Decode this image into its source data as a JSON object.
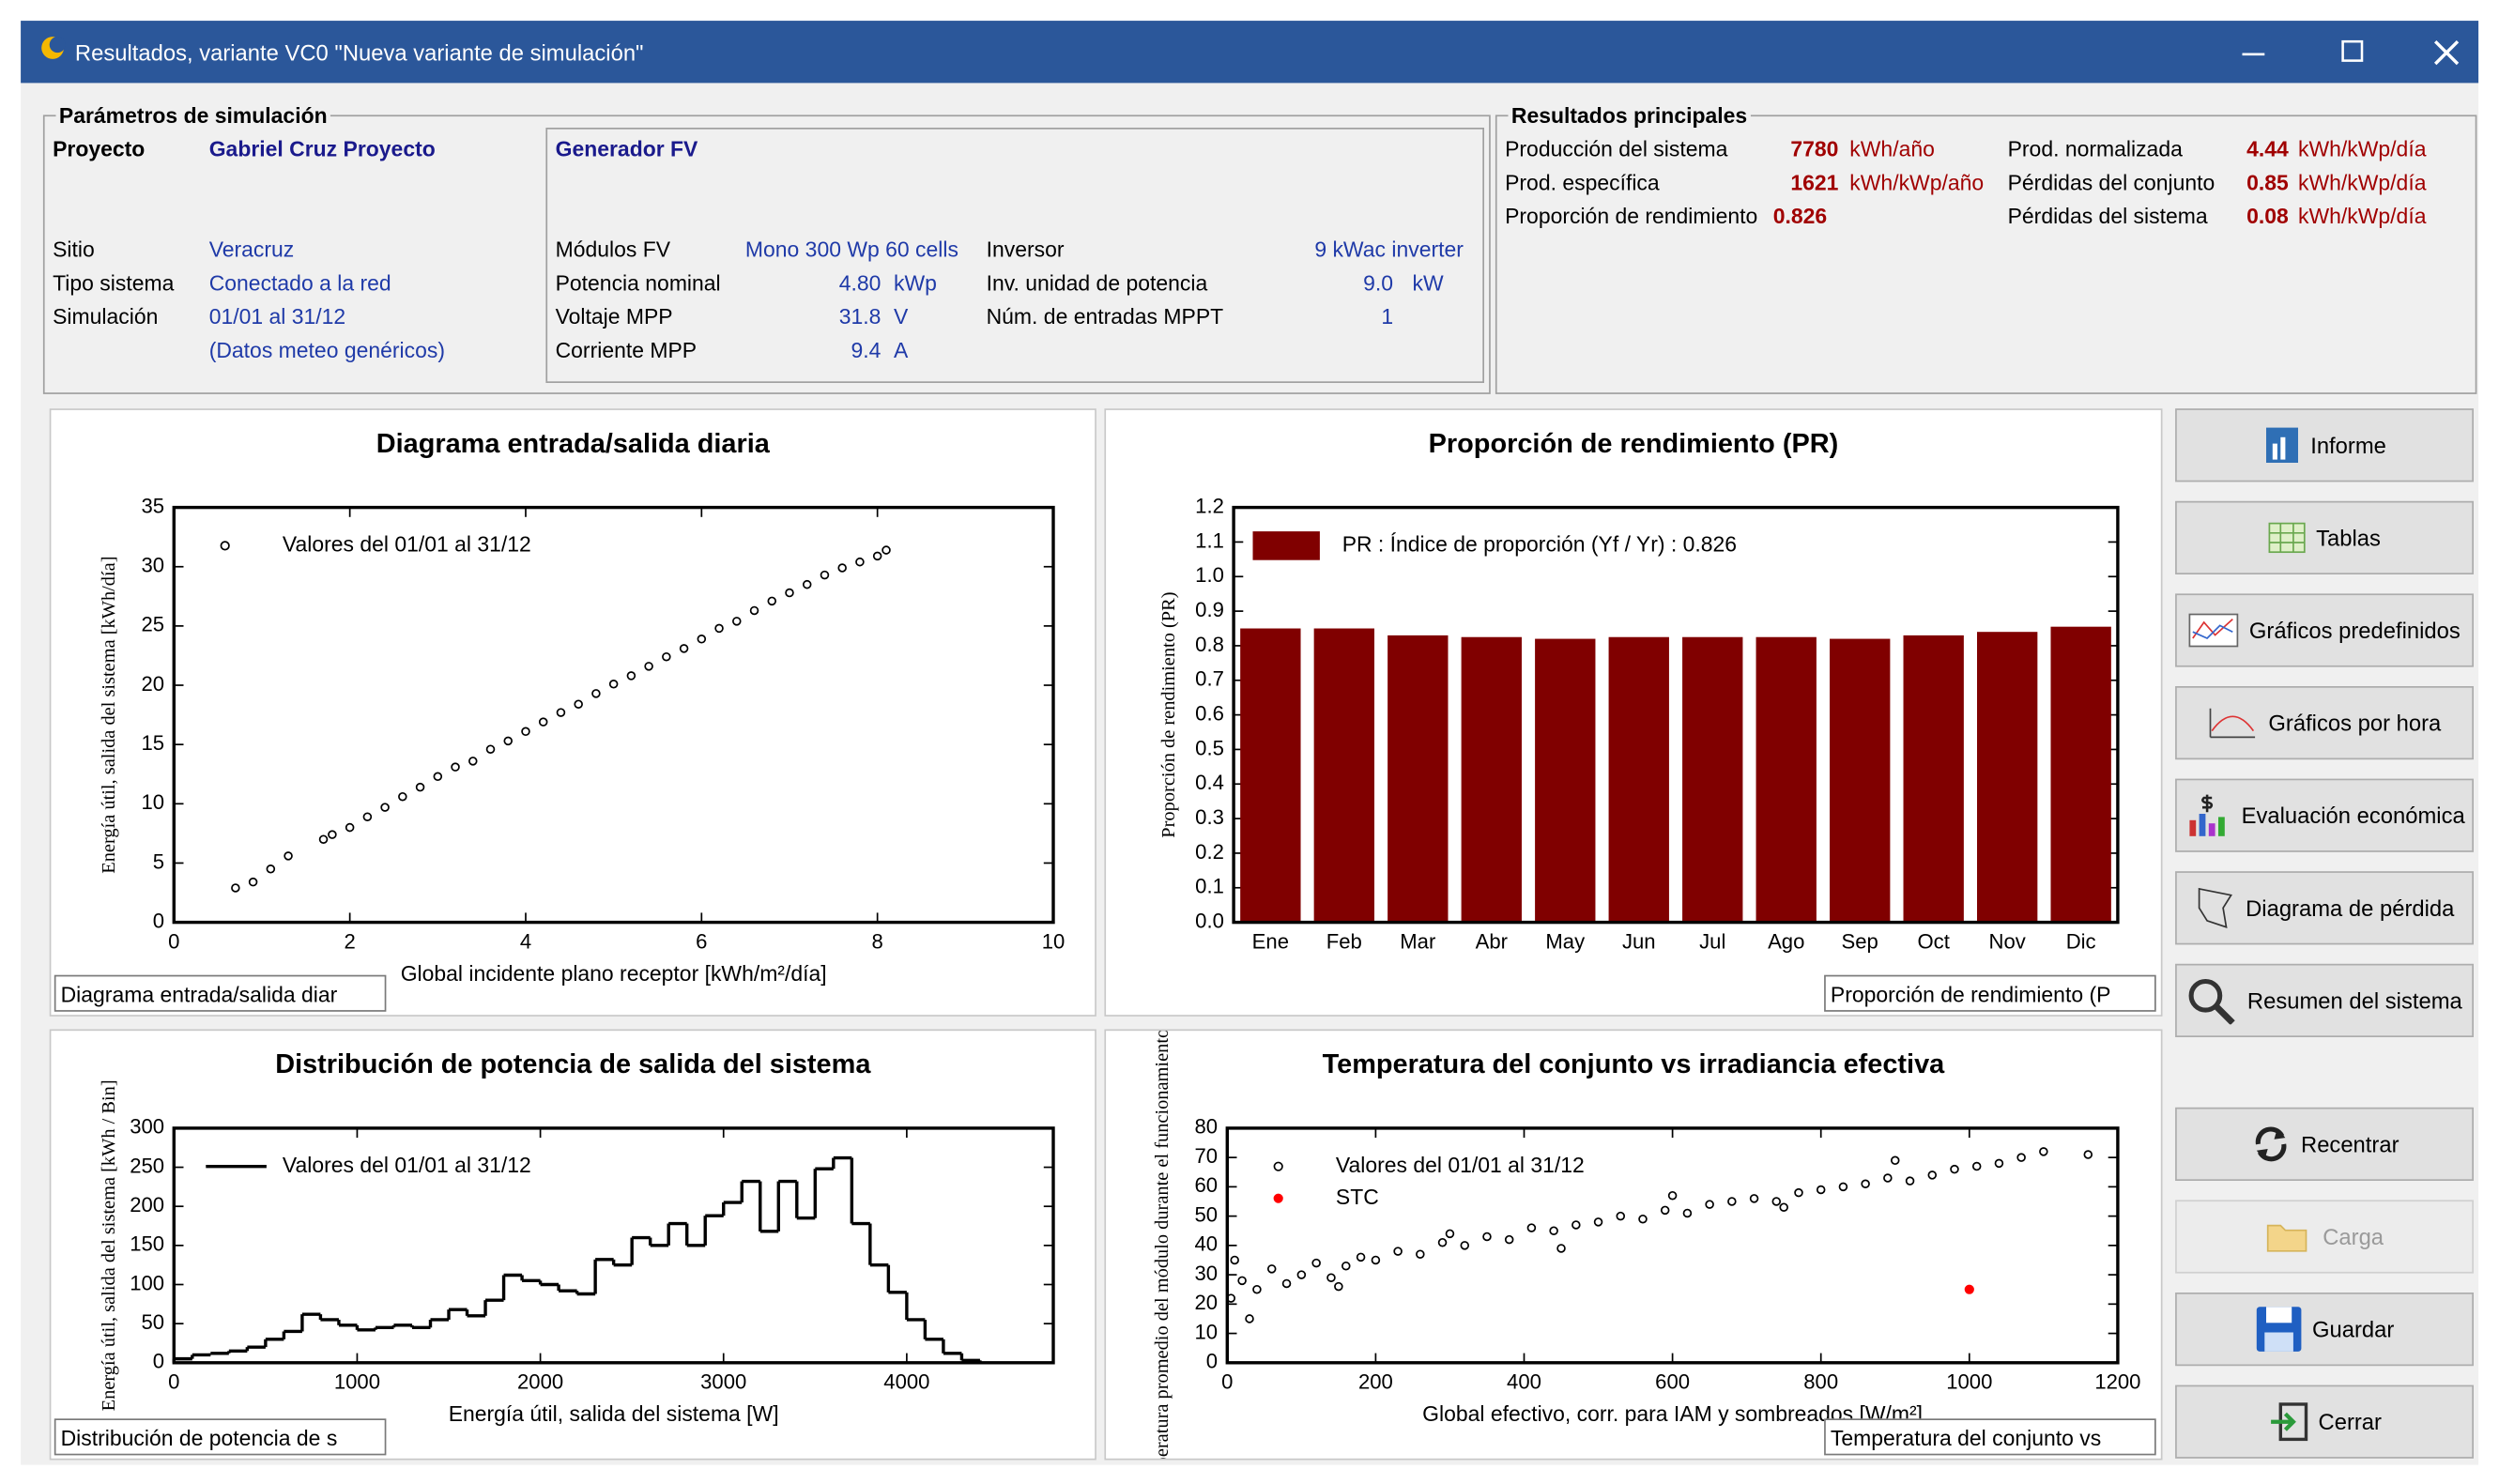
{
  "window": {
    "title": "Resultados, variante VC0  \"Nueva variante de simulación\""
  },
  "parameters": {
    "legend": "Parámetros de simulación",
    "project_label": "Proyecto",
    "project": "Gabriel Cruz Proyecto",
    "site_label": "Sitio",
    "site": "Veracruz",
    "system_type_label": "Tipo sistema",
    "system_type": "Conectado a la red",
    "simulation_label": "Simulación",
    "simulation": "01/01 al 31/12",
    "meteo_note": "(Datos meteo genéricos)"
  },
  "generator": {
    "title": "Generador FV",
    "modules_label": "Módulos FV",
    "modules": "Mono 300 Wp 60 cells",
    "rows": [
      {
        "label": "Potencia nominal",
        "value": "4.80",
        "unit": "kWp"
      },
      {
        "label": "Voltaje MPP",
        "value": "31.8",
        "unit": "V"
      },
      {
        "label": "Corriente MPP",
        "value": "9.4",
        "unit": "A"
      }
    ],
    "inverter_label": "Inversor",
    "inverter": "9 kWac inverter",
    "inverter_rows": [
      {
        "label": "Inv. unidad de potencia",
        "value": "9.0",
        "unit": "kW"
      },
      {
        "label": "Núm. de entradas MPPT",
        "value": "1"
      }
    ]
  },
  "results": {
    "legend": "Resultados principales",
    "left": [
      {
        "label": "Producción del sistema",
        "value": "7780",
        "unit": "kWh/año"
      },
      {
        "label": "Prod. específica",
        "value": "1621",
        "unit": "kWh/kWp/año"
      },
      {
        "label": "Proporción de rendimiento",
        "value": "0.826"
      }
    ],
    "right": [
      {
        "label": "Prod. normalizada",
        "value": "4.44",
        "unit": "kWh/kWp/día"
      },
      {
        "label": "Pérdidas del conjunto",
        "value": "0.85",
        "unit": "kWh/kWp/día"
      },
      {
        "label": "Pérdidas del sistema",
        "value": "0.08",
        "unit": "kWh/kWp/día"
      }
    ]
  },
  "buttons": [
    "Informe",
    "Tablas",
    "Gráficos predefinidos",
    "Gráficos por hora",
    "Evaluación económica",
    "Diagrama de pérdida",
    "Resumen del sistema",
    "Recentrar",
    "Carga",
    "Guardar",
    "Cerrar"
  ],
  "chart_data": [
    {
      "type": "scatter",
      "title": "Diagrama entrada/salida diaria",
      "x_label": "Global incidente plano receptor [kWh/m²/día]",
      "y_label": "Energía útil, salida del sistema [kWh/día]",
      "selector": "Diagrama entrada/salida diar",
      "xlim": [
        0,
        10
      ],
      "xticks": [
        0,
        2,
        4,
        6,
        8,
        10
      ],
      "ylim": [
        0,
        35
      ],
      "yticks": [
        0,
        5,
        10,
        15,
        20,
        25,
        30,
        35
      ],
      "series": [
        {
          "name": "Valores del 01/01 al 31/12",
          "color": "#000000",
          "x": [
            0.7,
            0.9,
            1.1,
            1.3,
            1.7,
            1.8,
            2.0,
            2.2,
            2.4,
            2.6,
            2.8,
            3.0,
            3.2,
            3.4,
            3.6,
            3.8,
            4.0,
            4.2,
            4.4,
            4.6,
            4.8,
            5.0,
            5.2,
            5.4,
            5.6,
            5.8,
            6.0,
            6.2,
            6.4,
            6.6,
            6.8,
            7.0,
            7.2,
            7.4,
            7.6,
            7.8,
            8.0,
            8.1
          ],
          "values": [
            2.9,
            3.4,
            4.5,
            5.6,
            7.0,
            7.4,
            8.0,
            8.9,
            9.7,
            10.6,
            11.4,
            12.3,
            13.1,
            13.6,
            14.6,
            15.3,
            16.1,
            16.9,
            17.7,
            18.4,
            19.3,
            20.1,
            20.8,
            21.6,
            22.4,
            23.1,
            23.9,
            24.8,
            25.4,
            26.3,
            27.1,
            27.8,
            28.5,
            29.3,
            29.9,
            30.4,
            30.9,
            31.4
          ]
        }
      ]
    },
    {
      "type": "bar",
      "title": "Proporción de rendimiento (PR)",
      "y_label": "Proporción de rendimiento (PR)",
      "selector": "Proporción de rendimiento (P",
      "categories": [
        "Ene",
        "Feb",
        "Mar",
        "Abr",
        "May",
        "Jun",
        "Jul",
        "Ago",
        "Sep",
        "Oct",
        "Nov",
        "Dic"
      ],
      "ylim": [
        0,
        1.2
      ],
      "yticks": [
        {
          "value": 0,
          "label": "0.0"
        },
        0.1,
        0.2,
        0.3,
        0.4,
        0.5,
        0.6,
        0.7,
        0.8,
        0.9,
        {
          "value": 1,
          "label": "1.0"
        },
        1.1,
        1.2
      ],
      "series": [
        {
          "name": "PR : Índice de proporción (Yf / Yr) :  0.826",
          "color": "#800000",
          "values": [
            0.85,
            0.85,
            0.83,
            0.825,
            0.82,
            0.825,
            0.825,
            0.825,
            0.82,
            0.83,
            0.84,
            0.855
          ]
        }
      ]
    },
    {
      "type": "histogram",
      "title": "Distribución de potencia de salida del sistema",
      "x_label": "Energía útil, salida del sistema [W]",
      "y_label": "Energía útil, salida del sistema [kWh / Bin]",
      "selector": "Distribución de potencia de s",
      "xlim": [
        0,
        4800
      ],
      "xticks": [
        0,
        1000,
        2000,
        3000,
        4000
      ],
      "ylim": [
        0,
        300
      ],
      "yticks": [
        0,
        50,
        100,
        150,
        200,
        250,
        300
      ],
      "bins": [
        0,
        100,
        200,
        300,
        400,
        500,
        600,
        700,
        800,
        900,
        1000,
        1100,
        1200,
        1300,
        1400,
        1500,
        1600,
        1700,
        1800,
        1900,
        2000,
        2100,
        2200,
        2300,
        2400,
        2500,
        2600,
        2700,
        2800,
        2900,
        3000,
        3100,
        3200,
        3300,
        3400,
        3500,
        3600,
        3700,
        3800,
        3900,
        4000,
        4100,
        4200,
        4300,
        4400
      ],
      "series": [
        {
          "name": "Valores del 01/01 al 31/12",
          "color": "#000000",
          "values": [
            5,
            10,
            12,
            15,
            20,
            30,
            40,
            62,
            55,
            48,
            42,
            45,
            48,
            45,
            55,
            68,
            60,
            80,
            112,
            105,
            100,
            92,
            88,
            132,
            125,
            160,
            150,
            178,
            150,
            188,
            205,
            232,
            168,
            232,
            185,
            248,
            262,
            178,
            125,
            90,
            55,
            30,
            12,
            3
          ]
        }
      ]
    },
    {
      "type": "scatter",
      "title": "Temperatura del conjunto vs irradiancia efectiva",
      "x_label": "Global efectivo, corr. para IAM y sombreados [W/m²]",
      "y_label": "Temperatura promedio del módulo durante el funcionamiento [°C]",
      "selector": "Temperatura del conjunto vs",
      "xlim": [
        0,
        1200
      ],
      "xticks": [
        0,
        200,
        400,
        600,
        800,
        1000,
        1200
      ],
      "ylim": [
        0,
        80
      ],
      "yticks": [
        0,
        10,
        20,
        30,
        40,
        50,
        60,
        70,
        80
      ],
      "series": [
        {
          "name": "Valores del 01/01 al 31/12",
          "color": "#000000",
          "x": [
            5,
            20,
            40,
            60,
            80,
            100,
            120,
            140,
            160,
            180,
            200,
            230,
            260,
            290,
            320,
            350,
            380,
            410,
            440,
            470,
            500,
            530,
            560,
            590,
            620,
            650,
            680,
            710,
            740,
            770,
            800,
            830,
            860,
            890,
            920,
            950,
            980,
            1010,
            1040,
            1070,
            1100,
            1160,
            30,
            150,
            300,
            450,
            600,
            750,
            900,
            10
          ],
          "values": [
            22,
            28,
            25,
            32,
            27,
            30,
            34,
            29,
            33,
            36,
            35,
            38,
            37,
            41,
            40,
            43,
            42,
            46,
            45,
            47,
            48,
            50,
            49,
            52,
            51,
            54,
            55,
            56,
            55,
            58,
            59,
            60,
            61,
            63,
            62,
            64,
            66,
            67,
            68,
            70,
            72,
            71,
            15,
            26,
            44,
            39,
            57,
            53,
            69,
            35
          ]
        },
        {
          "name": "STC",
          "color": "#ff0000",
          "x": [
            1000
          ],
          "values": [
            25
          ]
        }
      ]
    }
  ]
}
